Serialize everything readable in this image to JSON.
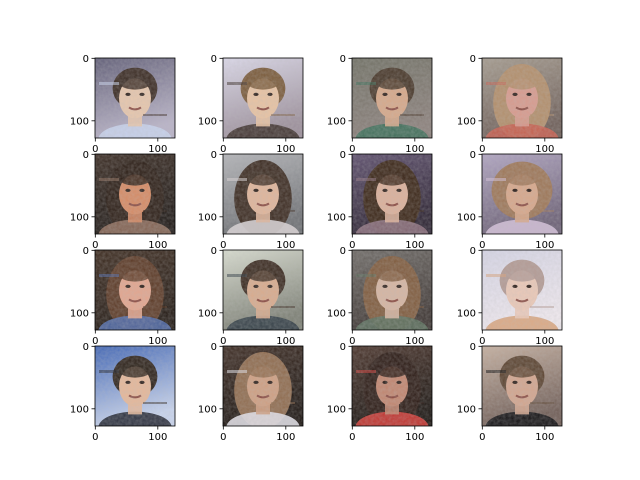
{
  "figure": {
    "grid": {
      "rows": 4,
      "cols": 4
    },
    "axes_ticks": {
      "values": [
        0,
        100
      ],
      "labels": [
        "0",
        "100"
      ]
    },
    "image_extent": {
      "width": 128,
      "height": 128
    },
    "panels": [
      {
        "row": 0,
        "col": 0,
        "bg": [
          "#5f5c76",
          "#b9b3c8"
        ],
        "hair": "#3a2a22",
        "skin": "#e8c7ad",
        "accent": "#c9d4ee",
        "style": "short"
      },
      {
        "row": 0,
        "col": 1,
        "bg": [
          "#dcd9ea",
          "#9c8f9b"
        ],
        "hair": "#7a5a3a",
        "skin": "#e9c3a3",
        "accent": "#3c2f2a",
        "style": "short"
      },
      {
        "row": 0,
        "col": 2,
        "bg": [
          "#6f6f63",
          "#8a7f7a"
        ],
        "hair": "#473628",
        "skin": "#d7a889",
        "accent": "#3b6e58",
        "style": "short"
      },
      {
        "row": 0,
        "col": 3,
        "bg": [
          "#a49a8d",
          "#6d5d57"
        ],
        "hair": "#b28e6b",
        "skin": "#d89a8d",
        "accent": "#c65c4d",
        "style": "long"
      },
      {
        "row": 1,
        "col": 0,
        "bg": [
          "#3a2b22",
          "#1d1714"
        ],
        "hair": "#2b1d15",
        "skin": "#d68a64",
        "accent": "#8d6b5a",
        "style": "long"
      },
      {
        "row": 1,
        "col": 1,
        "bg": [
          "#b3b4b8",
          "#6d6f73"
        ],
        "hair": "#3b2a20",
        "skin": "#e1b59a",
        "accent": "#d8d2d4",
        "style": "long"
      },
      {
        "row": 1,
        "col": 2,
        "bg": [
          "#5c4d6c",
          "#2b2231"
        ],
        "hair": "#3a2516",
        "skin": "#dcb09a",
        "accent": "#8a6d7b",
        "style": "long"
      },
      {
        "row": 1,
        "col": 3,
        "bg": [
          "#b0a4c2",
          "#6b5f75"
        ],
        "hair": "#9d7657",
        "skin": "#d8a78a",
        "accent": "#d3bfd8",
        "style": "curly"
      },
      {
        "row": 2,
        "col": 0,
        "bg": [
          "#3d2b1f",
          "#231a14"
        ],
        "hair": "#5c3a26",
        "skin": "#e3a58e",
        "accent": "#4e68a6",
        "style": "long"
      },
      {
        "row": 2,
        "col": 1,
        "bg": [
          "#d9ddd0",
          "#7c7f74"
        ],
        "hair": "#3b2a20",
        "skin": "#d9ab8d",
        "accent": "#2f3b44",
        "style": "short"
      },
      {
        "row": 2,
        "col": 2,
        "bg": [
          "#6e6a66",
          "#3c3431"
        ],
        "hair": "#7f5b3d",
        "skin": "#d6b5a2",
        "accent": "#5b6f5d",
        "style": "long"
      },
      {
        "row": 2,
        "col": 3,
        "bg": [
          "#d7d6e7",
          "#f1eaf0"
        ],
        "hair": "#b39a94",
        "skin": "#ecc9b8",
        "accent": "#d9a37a",
        "style": "short"
      },
      {
        "row": 3,
        "col": 0,
        "bg": [
          "#3d63b5",
          "#c9d5ef"
        ],
        "hair": "#2c2119",
        "skin": "#e6b89a",
        "accent": "#202430",
        "style": "short"
      },
      {
        "row": 3,
        "col": 1,
        "bg": [
          "#3d2b22",
          "#1c1511"
        ],
        "hair": "#8f6b4e",
        "skin": "#cf9f82",
        "accent": "#e2e0e8",
        "style": "long"
      },
      {
        "row": 3,
        "col": 2,
        "bg": [
          "#4a332a",
          "#19130f"
        ],
        "hair": "#2b1a14",
        "skin": "#c1856f",
        "accent": "#d03a34",
        "style": "long"
      },
      {
        "row": 3,
        "col": 3,
        "bg": [
          "#c6b0a0",
          "#6f5c55"
        ],
        "hair": "#5b4330",
        "skin": "#d3a58e",
        "accent": "#0c0c0f",
        "style": "short"
      }
    ]
  }
}
